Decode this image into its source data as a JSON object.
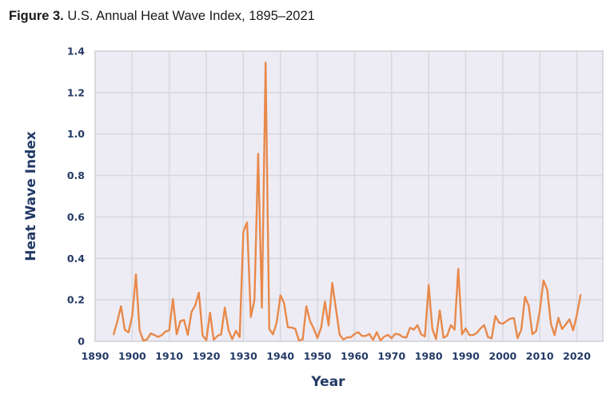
{
  "figure": {
    "label": "Figure 3.",
    "caption": "U.S. Annual Heat Wave Index, 1895–2021"
  },
  "colors": {
    "line": "#E8894A",
    "plot_background": "#EDECF5",
    "grid": "#D8D8DE",
    "axis_text": "#233A66"
  },
  "chart_data": {
    "type": "line",
    "title": "U.S. Annual Heat Wave Index, 1895–2021",
    "xlabel": "Year",
    "ylabel": "Heat Wave Index",
    "xlim": [
      1890,
      2027
    ],
    "ylim": [
      0,
      1.4
    ],
    "xticks": [
      1890,
      1900,
      1910,
      1920,
      1930,
      1940,
      1950,
      1960,
      1970,
      1980,
      1990,
      2000,
      2010,
      2020
    ],
    "yticks": [
      0,
      0.2,
      0.4,
      0.6,
      0.8,
      1.0,
      1.2,
      1.4
    ],
    "ytick_labels": [
      "0",
      "0.2",
      "0.4",
      "0.6",
      "0.8",
      "1.0",
      "1.2",
      "1.4"
    ],
    "grid": true,
    "legend": "none",
    "series": [
      {
        "name": "Heat Wave Index",
        "x_start": 1895,
        "values": [
          0.034,
          0.097,
          0.169,
          0.055,
          0.043,
          0.122,
          0.323,
          0.053,
          0.003,
          0.009,
          0.038,
          0.03,
          0.021,
          0.03,
          0.047,
          0.053,
          0.204,
          0.034,
          0.097,
          0.103,
          0.03,
          0.141,
          0.172,
          0.235,
          0.028,
          0.005,
          0.138,
          0.007,
          0.026,
          0.033,
          0.162,
          0.053,
          0.01,
          0.05,
          0.02,
          0.528,
          0.574,
          0.117,
          0.2,
          0.905,
          0.162,
          1.344,
          0.059,
          0.033,
          0.091,
          0.222,
          0.183,
          0.068,
          0.066,
          0.06,
          0.004,
          0.009,
          0.169,
          0.098,
          0.06,
          0.016,
          0.066,
          0.191,
          0.076,
          0.281,
          0.154,
          0.031,
          0.008,
          0.019,
          0.019,
          0.035,
          0.044,
          0.026,
          0.026,
          0.035,
          0.006,
          0.044,
          0.004,
          0.022,
          0.031,
          0.015,
          0.036,
          0.033,
          0.021,
          0.018,
          0.065,
          0.056,
          0.078,
          0.033,
          0.023,
          0.271,
          0.059,
          0.01,
          0.149,
          0.017,
          0.027,
          0.078,
          0.056,
          0.35,
          0.033,
          0.062,
          0.03,
          0.03,
          0.04,
          0.062,
          0.078,
          0.021,
          0.014,
          0.122,
          0.09,
          0.084,
          0.097,
          0.109,
          0.112,
          0.015,
          0.055,
          0.214,
          0.172,
          0.034,
          0.049,
          0.147,
          0.294,
          0.248,
          0.084,
          0.03,
          0.113,
          0.059,
          0.081,
          0.106,
          0.053,
          0.128,
          0.223
        ]
      }
    ]
  }
}
